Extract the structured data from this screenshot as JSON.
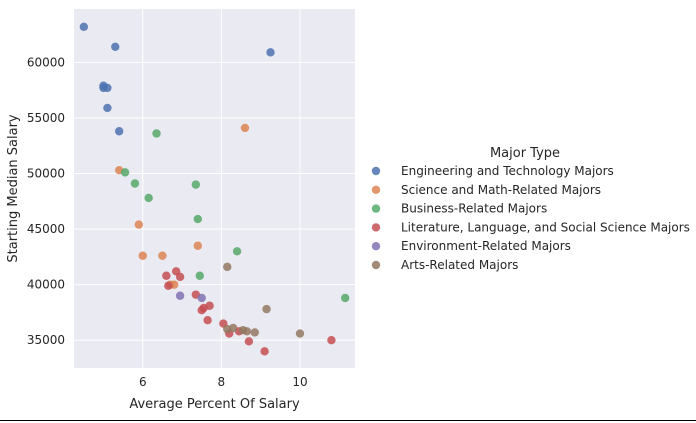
{
  "chart_data": {
    "type": "scatter",
    "xlabel": "Average Percent Of Salary",
    "ylabel": "Starting Median Salary",
    "xlim": [
      4.25,
      11.4
    ],
    "ylim": [
      32500,
      64800
    ],
    "xticks": [
      6,
      8,
      10
    ],
    "yticks": [
      35000,
      40000,
      45000,
      50000,
      55000,
      60000
    ],
    "grid": true,
    "legend": {
      "title": "Major Type",
      "placement": "right"
    },
    "series": [
      {
        "name": "Engineering and Technology Majors",
        "color": "#4c72b0",
        "points": [
          [
            4.5,
            63200
          ],
          [
            5.3,
            61400
          ],
          [
            9.25,
            60900
          ],
          [
            5.0,
            57900
          ],
          [
            5.0,
            57700
          ],
          [
            5.1,
            57700
          ],
          [
            5.1,
            55900
          ],
          [
            5.4,
            53800
          ]
        ]
      },
      {
        "name": "Science and Math-Related Majors",
        "color": "#dd8452",
        "points": [
          [
            8.6,
            54100
          ],
          [
            5.4,
            50300
          ],
          [
            5.9,
            45400
          ],
          [
            7.4,
            43500
          ],
          [
            6.0,
            42600
          ],
          [
            6.5,
            42600
          ],
          [
            6.8,
            40000
          ],
          [
            6.7,
            40000
          ]
        ]
      },
      {
        "name": "Business-Related Majors",
        "color": "#55a868",
        "points": [
          [
            6.35,
            53600
          ],
          [
            5.55,
            50100
          ],
          [
            5.8,
            49100
          ],
          [
            7.35,
            49000
          ],
          [
            6.15,
            47800
          ],
          [
            7.4,
            45900
          ],
          [
            8.4,
            43000
          ],
          [
            7.45,
            40800
          ],
          [
            11.15,
            38800
          ]
        ]
      },
      {
        "name": "Literature, Language, and Social Science Majors",
        "color": "#c44e52",
        "points": [
          [
            6.85,
            41200
          ],
          [
            6.6,
            40800
          ],
          [
            6.95,
            40700
          ],
          [
            6.65,
            39900
          ],
          [
            7.35,
            39100
          ],
          [
            7.7,
            38100
          ],
          [
            7.55,
            37900
          ],
          [
            7.5,
            37700
          ],
          [
            7.65,
            36800
          ],
          [
            8.05,
            36500
          ],
          [
            8.2,
            35600
          ],
          [
            8.45,
            35800
          ],
          [
            8.7,
            34900
          ],
          [
            9.1,
            34000
          ],
          [
            10.8,
            35000
          ]
        ]
      },
      {
        "name": "Environment-Related Majors",
        "color": "#8172b3",
        "points": [
          [
            6.95,
            39000
          ],
          [
            7.5,
            38800
          ]
        ]
      },
      {
        "name": "Arts-Related Majors",
        "color": "#937860",
        "points": [
          [
            8.15,
            41600
          ],
          [
            8.15,
            36000
          ],
          [
            8.3,
            36100
          ],
          [
            8.55,
            35900
          ],
          [
            8.65,
            35800
          ],
          [
            8.85,
            35700
          ],
          [
            9.15,
            37800
          ],
          [
            10.0,
            35600
          ]
        ]
      }
    ]
  }
}
